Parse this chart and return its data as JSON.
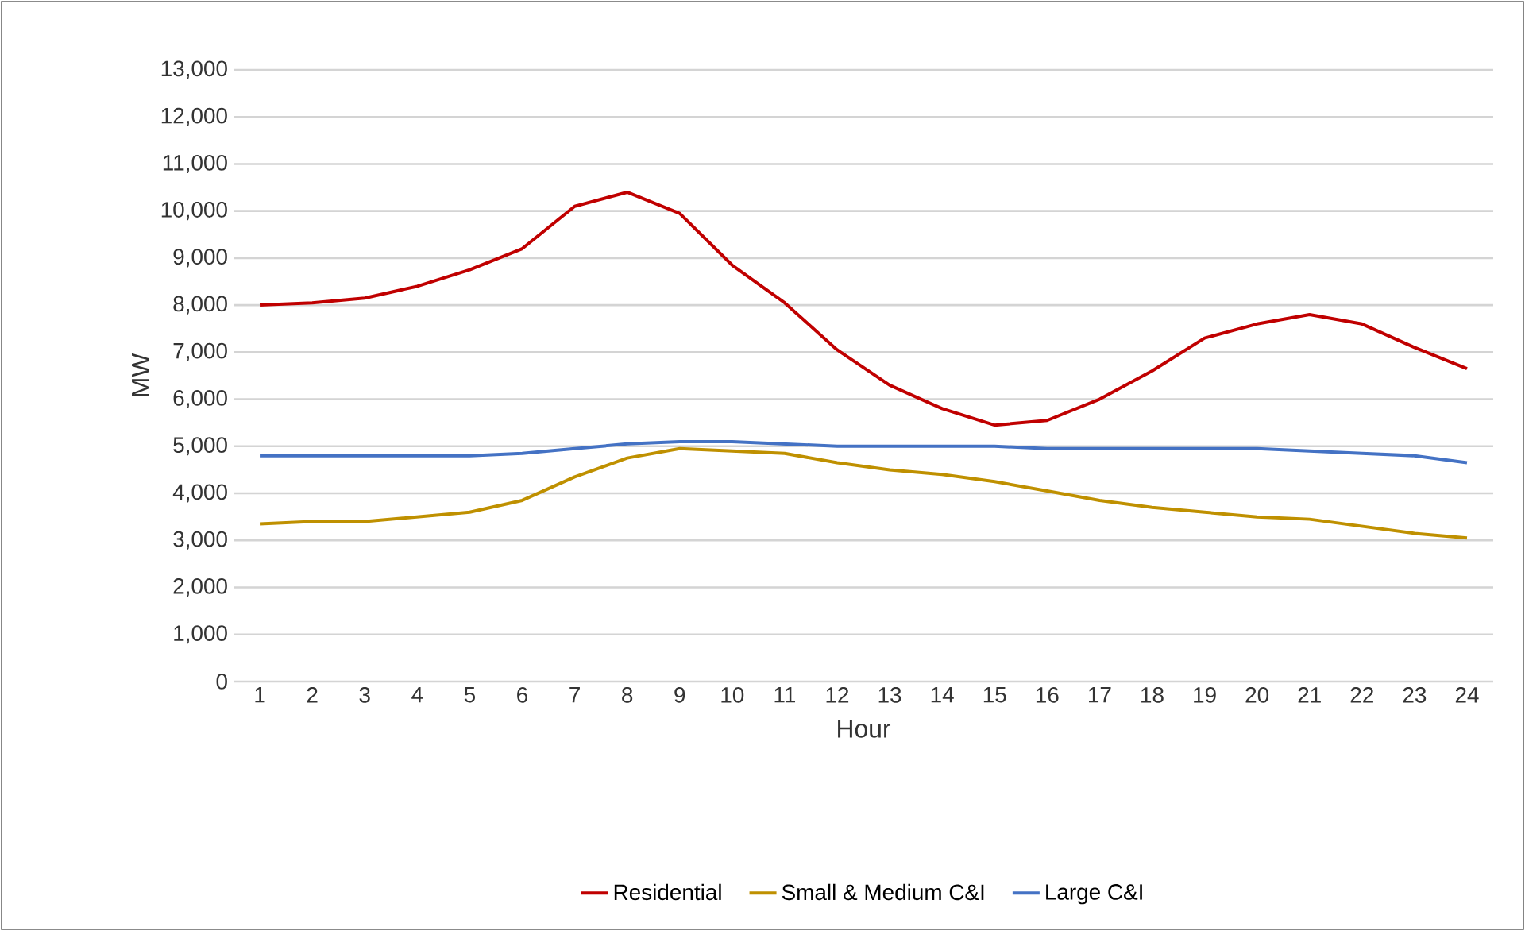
{
  "chart_data": {
    "type": "line",
    "xlabel": "Hour",
    "ylabel": "MW",
    "categories": [
      "1",
      "2",
      "3",
      "4",
      "5",
      "6",
      "7",
      "8",
      "9",
      "10",
      "11",
      "12",
      "13",
      "14",
      "15",
      "16",
      "17",
      "18",
      "19",
      "20",
      "21",
      "22",
      "23",
      "24"
    ],
    "series": [
      {
        "name": "Residential",
        "color": "#c00000",
        "values": [
          8000,
          8050,
          8150,
          8400,
          8750,
          9200,
          10100,
          10400,
          9950,
          8850,
          8050,
          7050,
          6300,
          5800,
          5450,
          5550,
          6000,
          6600,
          7300,
          7600,
          7800,
          7600,
          7100,
          6650
        ]
      },
      {
        "name": "Small & Medium C&I",
        "color": "#bf9000",
        "values": [
          3350,
          3400,
          3400,
          3500,
          3600,
          3850,
          4350,
          4750,
          4950,
          4900,
          4850,
          4650,
          4500,
          4400,
          4250,
          4050,
          3850,
          3700,
          3600,
          3500,
          3450,
          3300,
          3150,
          3050
        ]
      },
      {
        "name": "Large C&I",
        "color": "#4472c4",
        "values": [
          4800,
          4800,
          4800,
          4800,
          4800,
          4850,
          4950,
          5050,
          5100,
          5100,
          5050,
          5000,
          5000,
          5000,
          5000,
          4950,
          4950,
          4950,
          4950,
          4950,
          4900,
          4850,
          4800,
          4650
        ]
      }
    ],
    "ylim": [
      0,
      13000
    ],
    "yticks": [
      0,
      {
        "value": 1000,
        "label": "1,000"
      },
      {
        "value": 2000,
        "label": "2,000"
      },
      {
        "value": 3000,
        "label": "3,000"
      },
      {
        "value": 4000,
        "label": "4,000"
      },
      {
        "value": 5000,
        "label": "5,000"
      },
      {
        "value": 6000,
        "label": "6,000"
      },
      {
        "value": 7000,
        "label": "7,000"
      },
      {
        "value": 8000,
        "label": "8,000"
      },
      {
        "value": 9000,
        "label": "9,000"
      },
      {
        "value": 10000,
        "label": "10,000"
      },
      {
        "value": 11000,
        "label": "11,000"
      },
      {
        "value": 12000,
        "label": "12,000"
      },
      {
        "value": 13000,
        "label": "13,000"
      }
    ],
    "grid": "y",
    "legend": "bottom",
    "marker": "none",
    "line_style": "solid"
  }
}
